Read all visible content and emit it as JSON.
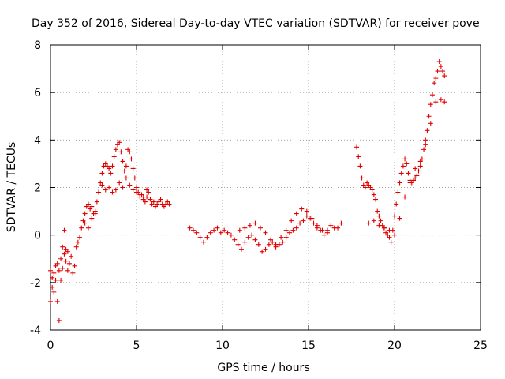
{
  "chart_data": {
    "type": "scatter",
    "title": "Day 352 of 2016, Sidereal Day-to-day VTEC variation (SDTVAR) for receiver pove",
    "xlabel": "GPS time / hours",
    "ylabel": "SDTVAR / TECUs",
    "xlim": [
      0,
      25
    ],
    "ylim": [
      -4,
      8
    ],
    "xticks": [
      0,
      5,
      10,
      15,
      20,
      25
    ],
    "yticks": [
      -4,
      -2,
      0,
      2,
      4,
      6,
      8
    ],
    "grid": true,
    "marker": "+",
    "color": "#e00000",
    "series": [
      {
        "name": "SDTVAR",
        "x": [
          0.0,
          0.1,
          0.2,
          0.3,
          0.4,
          0.5,
          0.6,
          0.7,
          0.8,
          0.9,
          1.0,
          1.1,
          1.2,
          1.3,
          1.4,
          1.5,
          1.6,
          1.7,
          1.8,
          1.9,
          2.0,
          2.1,
          2.2,
          2.3,
          2.4,
          2.5,
          2.6,
          2.7,
          2.8,
          2.9,
          3.0,
          3.1,
          3.2,
          3.3,
          3.4,
          3.5,
          3.6,
          3.7,
          3.8,
          3.9,
          4.0,
          4.1,
          4.2,
          4.3,
          4.4,
          4.5,
          4.6,
          4.7,
          4.8,
          4.9,
          5.0,
          5.1,
          5.2,
          5.3,
          5.4,
          5.5,
          5.6,
          5.7,
          5.8,
          5.9,
          6.0,
          6.1,
          6.2,
          6.3,
          6.4,
          6.5,
          6.6,
          6.7,
          6.8,
          6.9,
          0.0,
          0.1,
          0.2,
          0.3,
          0.4,
          0.5,
          0.6,
          0.7,
          0.8,
          0.9,
          1.0,
          2.0,
          2.2,
          2.4,
          2.6,
          2.8,
          3.0,
          3.2,
          3.4,
          3.6,
          3.8,
          4.0,
          4.2,
          4.4,
          4.6,
          4.8,
          5.0,
          5.2,
          5.4,
          5.6,
          8.1,
          8.3,
          8.5,
          8.7,
          8.9,
          9.1,
          9.3,
          9.5,
          9.7,
          9.9,
          10.1,
          10.3,
          10.5,
          10.7,
          10.9,
          11.1,
          11.3,
          11.5,
          11.7,
          11.9,
          12.1,
          12.3,
          12.5,
          12.7,
          12.9,
          13.1,
          13.3,
          13.5,
          13.7,
          13.9,
          14.1,
          14.3,
          14.5,
          14.7,
          14.9,
          15.1,
          15.3,
          15.5,
          15.7,
          15.9,
          16.1,
          16.3,
          16.5,
          16.7,
          16.9,
          11.0,
          11.3,
          11.6,
          11.9,
          12.2,
          12.5,
          12.8,
          13.1,
          13.4,
          13.7,
          14.0,
          14.3,
          14.6,
          14.9,
          15.2,
          15.5,
          15.8,
          16.1,
          17.8,
          17.9,
          18.0,
          18.1,
          18.2,
          18.3,
          18.4,
          18.5,
          18.6,
          18.7,
          18.8,
          18.9,
          19.0,
          19.1,
          19.2,
          19.3,
          19.4,
          19.5,
          19.6,
          19.7,
          19.8,
          19.9,
          20.0,
          20.1,
          20.2,
          20.3,
          20.4,
          20.5,
          20.6,
          20.7,
          20.8,
          20.9,
          21.0,
          21.1,
          21.2,
          21.3,
          21.4,
          21.5,
          21.6,
          21.7,
          21.8,
          21.9,
          22.0,
          22.1,
          22.2,
          22.3,
          22.4,
          22.5,
          22.6,
          22.7,
          22.8,
          22.9,
          18.5,
          18.8,
          19.1,
          19.4,
          19.7,
          20.0,
          20.3,
          20.6,
          20.9,
          21.2,
          21.5,
          21.8,
          22.1,
          22.4,
          22.7,
          22.9
        ],
        "y": [
          -2.8,
          -2.2,
          -1.6,
          -1.9,
          -1.2,
          -1.5,
          -1.0,
          -1.4,
          -0.8,
          -1.1,
          -0.7,
          -1.2,
          -0.9,
          -1.6,
          -1.3,
          -0.5,
          -0.3,
          -0.1,
          0.3,
          0.6,
          0.9,
          1.2,
          1.3,
          1.1,
          1.2,
          0.9,
          1.0,
          1.4,
          1.8,
          2.2,
          2.6,
          2.9,
          3.0,
          2.9,
          2.8,
          2.6,
          2.9,
          3.3,
          3.6,
          3.8,
          3.9,
          3.5,
          3.1,
          2.7,
          2.9,
          3.6,
          3.5,
          3.2,
          2.8,
          2.4,
          2.0,
          1.8,
          1.6,
          1.7,
          1.5,
          1.4,
          1.6,
          1.8,
          1.5,
          1.3,
          1.4,
          1.2,
          1.3,
          1.4,
          1.5,
          1.3,
          1.2,
          1.3,
          1.4,
          1.3,
          -1.5,
          -1.8,
          -2.4,
          -1.3,
          -2.8,
          -3.6,
          -1.9,
          -0.5,
          0.2,
          -0.6,
          -1.5,
          0.5,
          0.3,
          0.7,
          0.9,
          1.8,
          2.1,
          1.9,
          2.0,
          1.8,
          1.9,
          2.2,
          2.0,
          2.4,
          2.1,
          1.9,
          1.8,
          1.7,
          1.6,
          1.9,
          0.3,
          0.2,
          0.1,
          -0.1,
          -0.3,
          -0.1,
          0.1,
          0.2,
          0.3,
          0.1,
          0.2,
          0.1,
          0.0,
          -0.2,
          -0.4,
          -0.6,
          -0.3,
          -0.1,
          0.0,
          -0.2,
          -0.4,
          -0.7,
          -0.6,
          -0.4,
          -0.3,
          -0.5,
          -0.4,
          -0.3,
          -0.1,
          0.1,
          0.2,
          0.3,
          0.5,
          0.6,
          0.8,
          0.7,
          0.5,
          0.3,
          0.2,
          0.0,
          0.2,
          0.4,
          0.3,
          0.3,
          0.5,
          0.2,
          0.3,
          0.4,
          0.5,
          0.3,
          0.1,
          -0.2,
          -0.4,
          -0.1,
          0.2,
          0.6,
          0.9,
          1.1,
          1.0,
          0.7,
          0.4,
          0.2,
          0.1,
          3.7,
          3.3,
          2.9,
          2.4,
          2.1,
          2.0,
          2.2,
          2.1,
          2.0,
          1.9,
          1.7,
          1.5,
          1.0,
          0.8,
          0.6,
          0.4,
          0.3,
          0.1,
          0.0,
          -0.1,
          -0.3,
          0.2,
          0.8,
          1.3,
          1.8,
          2.2,
          2.6,
          2.9,
          3.2,
          3.0,
          2.6,
          2.3,
          2.2,
          2.3,
          2.4,
          2.5,
          2.7,
          2.9,
          3.2,
          3.6,
          4.0,
          4.4,
          5.0,
          5.5,
          5.9,
          6.4,
          6.6,
          6.9,
          7.3,
          7.1,
          6.9,
          6.7,
          0.5,
          0.6,
          0.4,
          0.3,
          0.2,
          0.0,
          0.7,
          1.6,
          2.2,
          2.8,
          3.1,
          3.8,
          4.7,
          5.6,
          5.7,
          5.6
        ]
      }
    ]
  }
}
